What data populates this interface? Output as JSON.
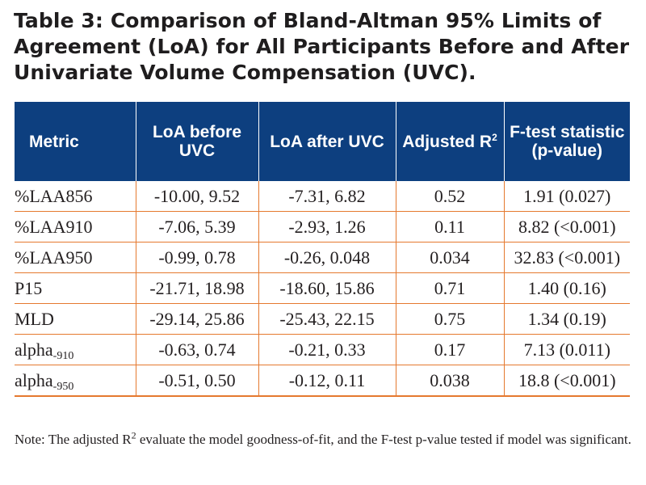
{
  "title": "Table 3: Comparison of Bland-Altman 95% Limits of Agreement (LoA) for All Participants Before and After Univariate Volume Compensation (UVC).",
  "table": {
    "headers": {
      "metric": "Metric",
      "loa_before": "LoA before UVC",
      "loa_after": "LoA after UVC",
      "adjusted_r2": "Adjusted R",
      "adjusted_r2_sup": "2",
      "f_test": "F-test statistic (p-value)"
    },
    "rows": [
      {
        "metric": "%LAA856",
        "metric_base": "%LAA",
        "metric_suffix": "856",
        "metric_suffix_style": "inline",
        "loa_before": "-10.00, 9.52",
        "loa_after": "-7.31, 6.82",
        "adjusted_r2": "0.52",
        "f_test": "1.91 (0.027)"
      },
      {
        "metric": "%LAA910",
        "metric_base": "%LAA",
        "metric_suffix": "910",
        "metric_suffix_style": "inline",
        "loa_before": "-7.06, 5.39",
        "loa_after": "-2.93, 1.26",
        "adjusted_r2": "0.11",
        "f_test": "8.82 (<0.001)"
      },
      {
        "metric": "%LAA950",
        "metric_base": "%LAA",
        "metric_suffix": "950",
        "metric_suffix_style": "inline",
        "loa_before": "-0.99, 0.78",
        "loa_after": "-0.26, 0.048",
        "adjusted_r2": "0.034",
        "f_test": "32.83 (<0.001)"
      },
      {
        "metric": "P15",
        "metric_base": "P15",
        "metric_suffix": "",
        "metric_suffix_style": "inline",
        "loa_before": "-21.71, 18.98",
        "loa_after": "-18.60, 15.86",
        "adjusted_r2": "0.71",
        "f_test": "1.40 (0.16)"
      },
      {
        "metric": "MLD",
        "metric_base": "MLD",
        "metric_suffix": "",
        "metric_suffix_style": "inline",
        "loa_before": "-29.14, 25.86",
        "loa_after": "-25.43, 22.15",
        "adjusted_r2": "0.75",
        "f_test": "1.34 (0.19)"
      },
      {
        "metric": "alpha-910",
        "metric_base": "alpha",
        "metric_suffix": "-910",
        "metric_suffix_style": "sub",
        "loa_before": "-0.63, 0.74",
        "loa_after": "-0.21, 0.33",
        "adjusted_r2": "0.17",
        "f_test": "7.13 (0.011)"
      },
      {
        "metric": "alpha-950",
        "metric_base": "alpha",
        "metric_suffix": "-950",
        "metric_suffix_style": "sub",
        "loa_before": "-0.51, 0.50",
        "loa_after": "-0.12, 0.11",
        "adjusted_r2": "0.038",
        "f_test": "18.8 (<0.001)"
      }
    ]
  },
  "note": {
    "before_sup": "Note: The adjusted R",
    "sup": "2",
    "after_sup": " evaluate the model goodness-of-fit, and the F-test p-value tested if model was significant."
  },
  "colors": {
    "header_bg": "#0d3f7f",
    "header_text": "#ffffff",
    "row_divider": "#e5792f",
    "body_text": "#231f20"
  }
}
